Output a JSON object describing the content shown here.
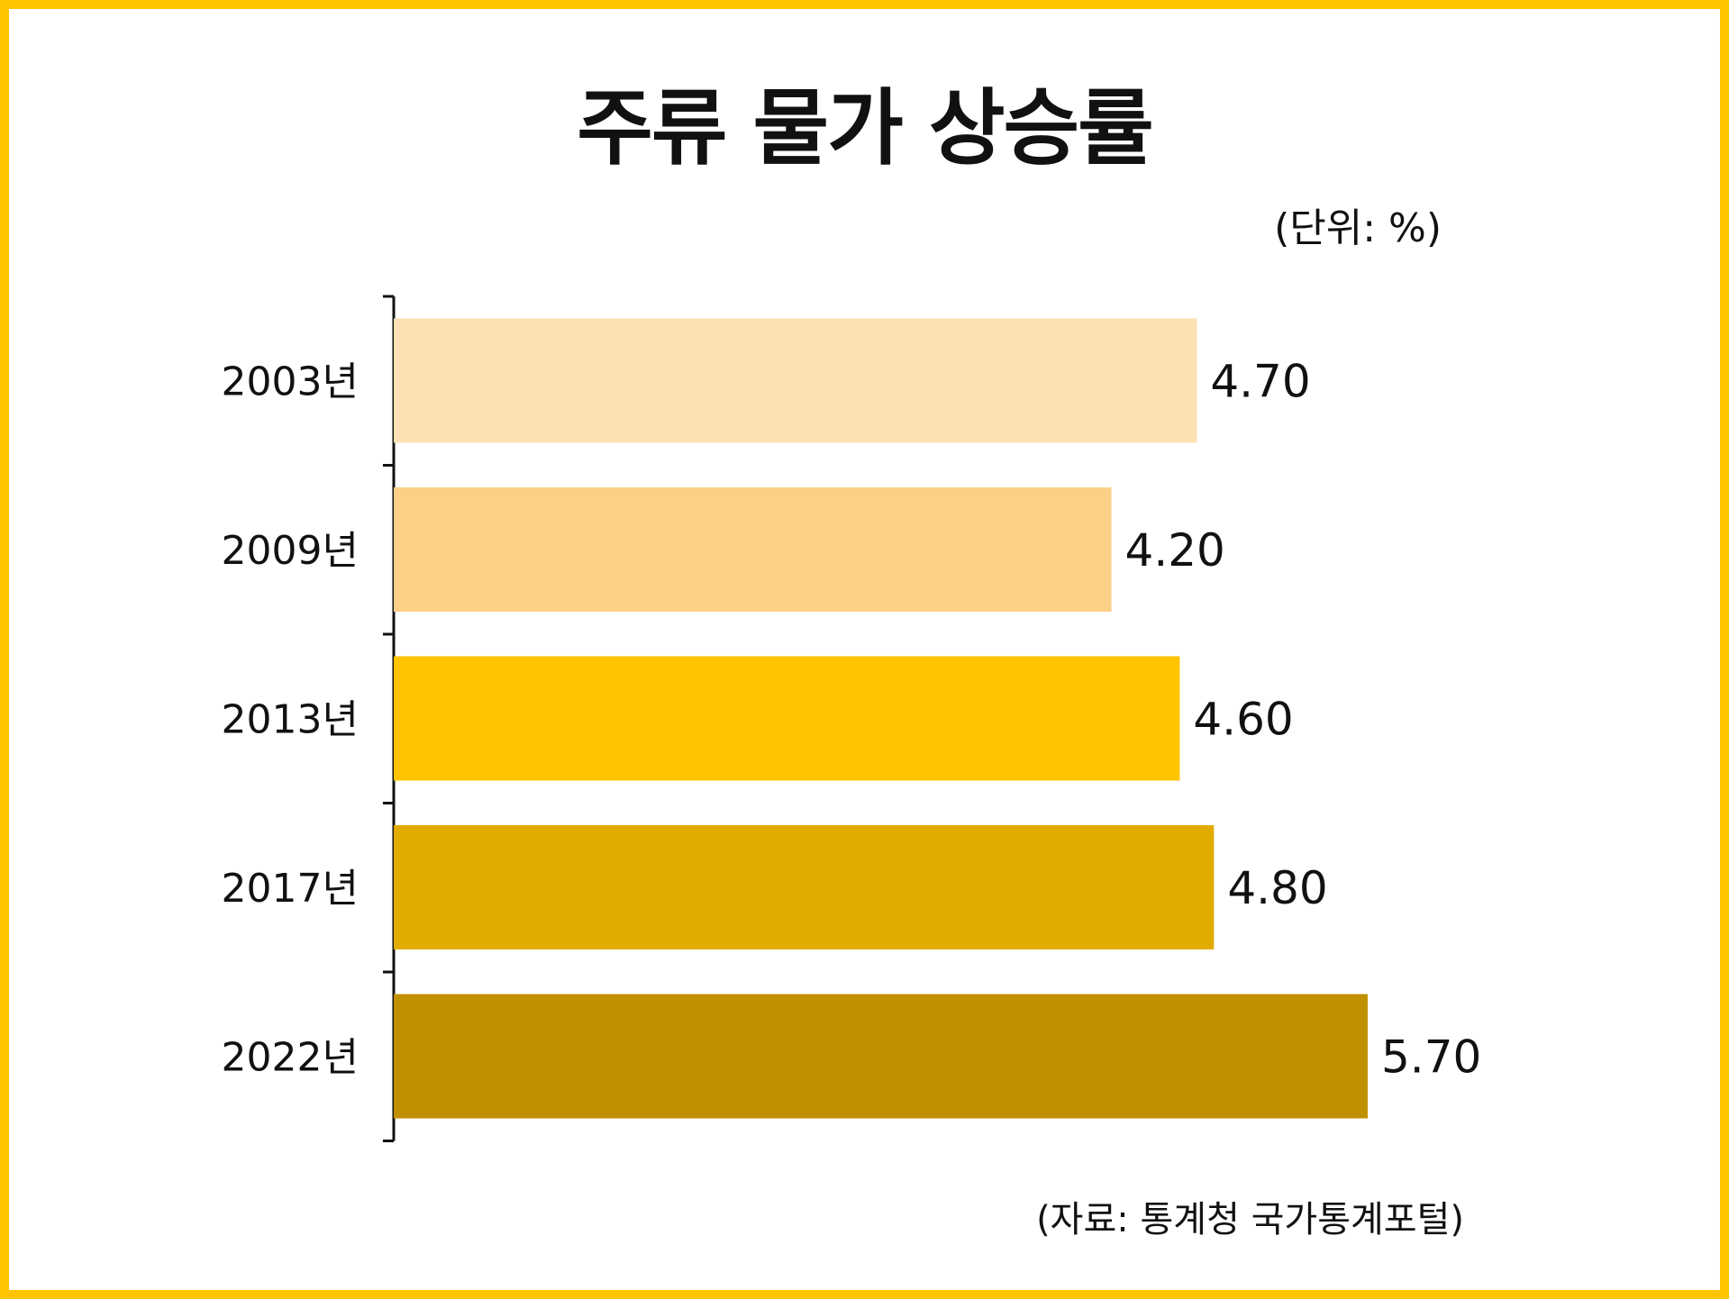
{
  "chart_data": {
    "type": "bar",
    "orientation": "horizontal",
    "title": "주류 물가 상승률",
    "unit_label": "(단위: %)",
    "source": "(자료: 통계청 국가통계포털)",
    "categories": [
      "2003년",
      "2009년",
      "2013년",
      "2017년",
      "2022년"
    ],
    "values": [
      4.7,
      4.2,
      4.6,
      4.8,
      5.7
    ],
    "value_labels": [
      "4.70",
      "4.20",
      "4.60",
      "4.80",
      "5.70"
    ],
    "bar_colors": [
      "#fde0b3",
      "#fdd088",
      "#ffc300",
      "#e2ab00",
      "#c19000"
    ],
    "frame_color": "#ffc400",
    "xlim": [
      0,
      5.7
    ],
    "grid": false,
    "legend": "none"
  }
}
